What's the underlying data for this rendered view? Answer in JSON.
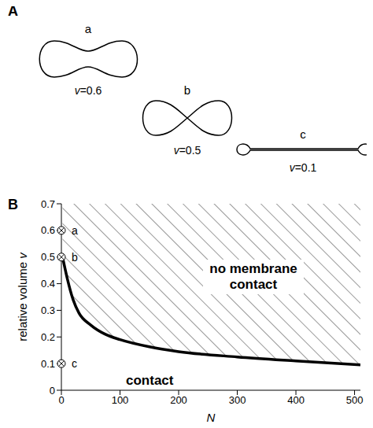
{
  "panel_labels": [
    "A",
    "B"
  ],
  "shapes": [
    {
      "name": "a",
      "text": "v=0.6"
    },
    {
      "name": "b",
      "text": "v=0.5"
    },
    {
      "name": "c",
      "text": "v=0.1"
    }
  ],
  "chart_data": {
    "type": "line",
    "x_label": "N",
    "y_label": "relative volume v",
    "x": [
      2,
      10,
      20,
      30,
      50,
      75,
      100,
      150,
      200,
      300,
      400,
      510
    ],
    "values": [
      0.5,
      0.42,
      0.34,
      0.29,
      0.245,
      0.21,
      0.19,
      0.163,
      0.145,
      0.125,
      0.11,
      0.095
    ],
    "color": "#000000",
    "xlim": [
      0,
      510
    ],
    "xticks": [
      0,
      100,
      200,
      300,
      400,
      500
    ],
    "ylim": [
      0,
      0.7
    ],
    "yticks": [
      0,
      0.1,
      0.2,
      0.3,
      0.4,
      0.5,
      0.6,
      0.7
    ],
    "grid": false,
    "points": [
      {
        "label": "a",
        "x": 0,
        "y": 0.6
      },
      {
        "label": "b",
        "x": 0,
        "y": 0.5
      },
      {
        "label": "c",
        "x": 0,
        "y": 0.1
      }
    ],
    "marker": "circled-x",
    "annotations": [
      {
        "text": "no membrane contact",
        "hatched": true
      },
      {
        "text": "contact",
        "hatched": false
      }
    ]
  }
}
